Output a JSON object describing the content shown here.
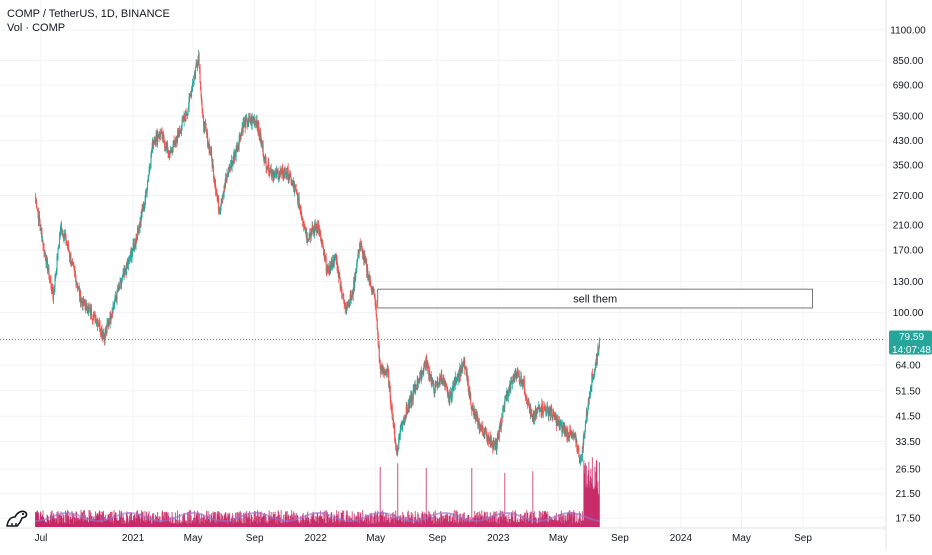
{
  "legend": {
    "symbol_line": "COMP / TetherUS, 1D, BINANCE",
    "volume_line": "Vol · COMP"
  },
  "last_price": {
    "value": "79.59",
    "countdown": "14:07:48"
  },
  "colors": {
    "up": "#26a69a",
    "down": "#ef5350",
    "volume": "#c2185b",
    "volume_ma": "#9575cd",
    "price_line": "#26a69a",
    "grid": "#f0f3fa",
    "axis_text": "#131722"
  },
  "chart_data": {
    "type": "candlestick",
    "y_scale": "log",
    "y_tick_labels": [
      "1100.00",
      "850.00",
      "690.00",
      "530.00",
      "430.00",
      "350.00",
      "270.00",
      "210.00",
      "170.00",
      "130.00",
      "100.00",
      "64.00",
      "51.50",
      "41.50",
      "33.50",
      "26.50",
      "21.50",
      "17.50"
    ],
    "x_tick_labels": [
      "Jul",
      "2021",
      "May",
      "Sep",
      "2022",
      "May",
      "Sep",
      "2023",
      "May",
      "Sep",
      "2024",
      "May",
      "Sep"
    ],
    "x_ticks": [
      "2020-07",
      "2021-01",
      "2021-05",
      "2021-09",
      "2022-01",
      "2022-05",
      "2022-09",
      "2023-01",
      "2023-05",
      "2023-09",
      "2024-01",
      "2024-05",
      "2024-09"
    ],
    "price_path": [
      [
        "2020-06-20",
        265
      ],
      [
        "2020-07-05",
        180
      ],
      [
        "2020-07-25",
        115
      ],
      [
        "2020-08-10",
        210
      ],
      [
        "2020-08-25",
        170
      ],
      [
        "2020-09-20",
        110
      ],
      [
        "2020-10-20",
        95
      ],
      [
        "2020-11-05",
        82
      ],
      [
        "2020-11-25",
        110
      ],
      [
        "2020-12-15",
        140
      ],
      [
        "2021-01-05",
        180
      ],
      [
        "2021-01-25",
        260
      ],
      [
        "2021-02-10",
        430
      ],
      [
        "2021-02-25",
        460
      ],
      [
        "2021-03-15",
        380
      ],
      [
        "2021-04-05",
        470
      ],
      [
        "2021-04-20",
        560
      ],
      [
        "2021-05-05",
        780
      ],
      [
        "2021-05-12",
        900
      ],
      [
        "2021-05-20",
        520
      ],
      [
        "2021-06-05",
        390
      ],
      [
        "2021-06-22",
        240
      ],
      [
        "2021-07-10",
        330
      ],
      [
        "2021-07-25",
        390
      ],
      [
        "2021-08-10",
        500
      ],
      [
        "2021-09-05",
        510
      ],
      [
        "2021-09-22",
        360
      ],
      [
        "2021-10-10",
        320
      ],
      [
        "2021-11-05",
        330
      ],
      [
        "2021-11-25",
        270
      ],
      [
        "2021-12-15",
        190
      ],
      [
        "2022-01-05",
        210
      ],
      [
        "2022-01-25",
        140
      ],
      [
        "2022-02-10",
        160
      ],
      [
        "2022-02-28",
        105
      ],
      [
        "2022-03-15",
        115
      ],
      [
        "2022-03-30",
        180
      ],
      [
        "2022-04-15",
        140
      ],
      [
        "2022-04-30",
        110
      ],
      [
        "2022-05-10",
        62
      ],
      [
        "2022-05-25",
        60
      ],
      [
        "2022-06-12",
        30
      ],
      [
        "2022-06-20",
        38
      ],
      [
        "2022-07-05",
        45
      ],
      [
        "2022-07-25",
        56
      ],
      [
        "2022-08-10",
        66
      ],
      [
        "2022-08-25",
        52
      ],
      [
        "2022-09-10",
        58
      ],
      [
        "2022-09-25",
        48
      ],
      [
        "2022-10-10",
        58
      ],
      [
        "2022-10-25",
        65
      ],
      [
        "2022-11-10",
        44
      ],
      [
        "2022-11-25",
        38
      ],
      [
        "2022-12-15",
        34
      ],
      [
        "2022-12-28",
        32
      ],
      [
        "2023-01-15",
        48
      ],
      [
        "2023-02-05",
        60
      ],
      [
        "2023-02-20",
        55
      ],
      [
        "2023-03-10",
        40
      ],
      [
        "2023-03-25",
        45
      ],
      [
        "2023-04-15",
        43
      ],
      [
        "2023-05-05",
        38
      ],
      [
        "2023-05-20",
        36
      ],
      [
        "2023-06-05",
        34
      ],
      [
        "2023-06-15",
        28
      ],
      [
        "2023-06-25",
        40
      ],
      [
        "2023-07-05",
        55
      ],
      [
        "2023-07-15",
        65
      ],
      [
        "2023-07-22",
        79.59
      ]
    ],
    "annotation": {
      "text": "sell them",
      "x_start": "2022-05-01",
      "x_end": "2024-09-20",
      "y_low": 104,
      "y_high": 122
    },
    "last_price": 79.59
  }
}
